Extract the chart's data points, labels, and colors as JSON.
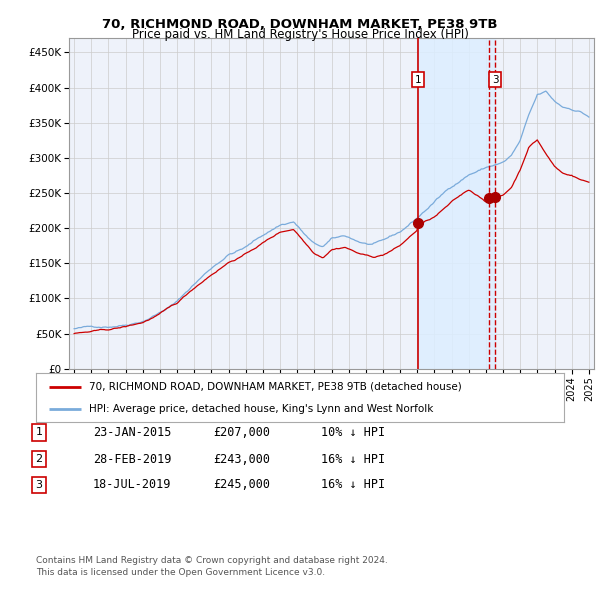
{
  "title": "70, RICHMOND ROAD, DOWNHAM MARKET, PE38 9TB",
  "subtitle": "Price paid vs. HM Land Registry's House Price Index (HPI)",
  "legend_line1": "70, RICHMOND ROAD, DOWNHAM MARKET, PE38 9TB (detached house)",
  "legend_line2": "HPI: Average price, detached house, King's Lynn and West Norfolk",
  "footer1": "Contains HM Land Registry data © Crown copyright and database right 2024.",
  "footer2": "This data is licensed under the Open Government Licence v3.0.",
  "transactions": [
    {
      "num": 1,
      "date": "23-JAN-2015",
      "price": 207000,
      "pct": "10%",
      "dir": "↓"
    },
    {
      "num": 2,
      "date": "28-FEB-2019",
      "price": 243000,
      "pct": "16%",
      "dir": "↓"
    },
    {
      "num": 3,
      "date": "18-JUL-2019",
      "price": 245000,
      "pct": "16%",
      "dir": "↓"
    }
  ],
  "transaction_dates_num": [
    2015.06,
    2019.16,
    2019.55
  ],
  "transaction_prices": [
    207000,
    243000,
    245000
  ],
  "hpi_color": "#7aabdb",
  "price_color": "#cc0000",
  "marker_color": "#aa0000",
  "vline_color": "#cc0000",
  "shade_color": "#ddeeff",
  "bg_color": "#ffffff",
  "plot_bg_color": "#eef2fa",
  "grid_color": "#cccccc",
  "ylim": [
    0,
    470000
  ],
  "yticks": [
    0,
    50000,
    100000,
    150000,
    200000,
    250000,
    300000,
    350000,
    400000,
    450000
  ],
  "ytick_labels": [
    "£0",
    "£50K",
    "£100K",
    "£150K",
    "£200K",
    "£250K",
    "£300K",
    "£350K",
    "£400K",
    "£450K"
  ],
  "xmin": 1994.7,
  "xmax": 2025.3
}
